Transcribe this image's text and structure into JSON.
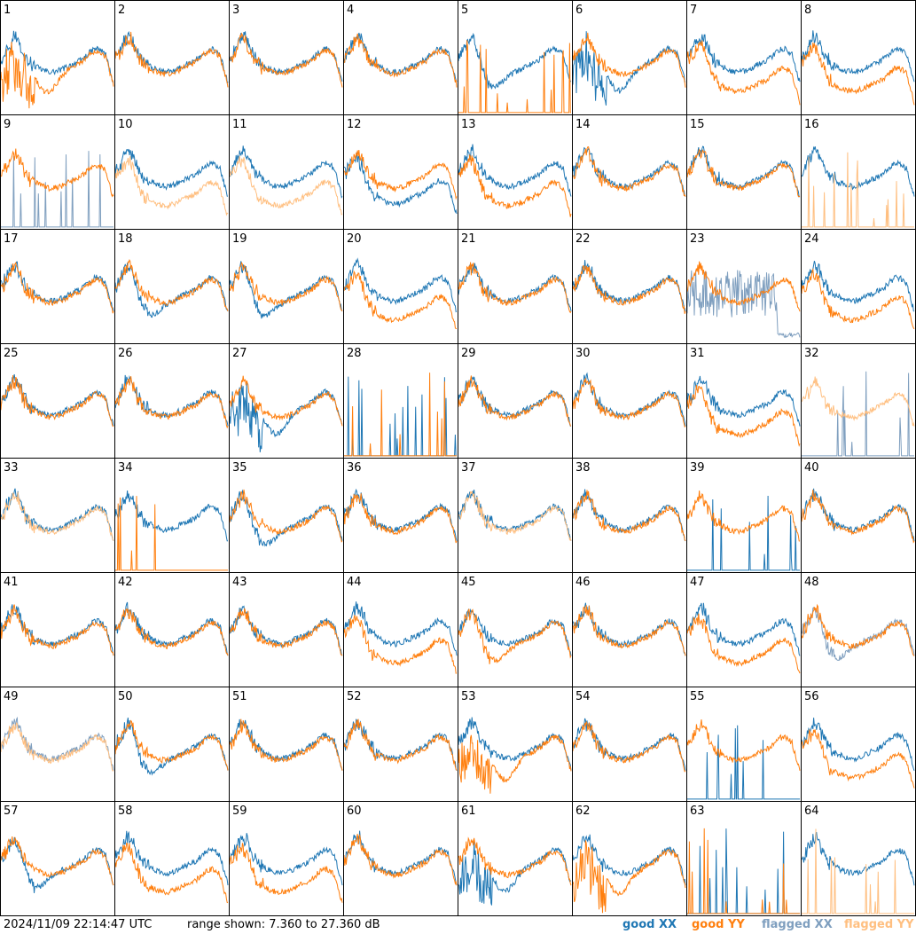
{
  "footer": {
    "timestamp": "2024/11/09 22:14:47 UTC",
    "range": "range shown: 7.360 to 27.360 dB",
    "legend": {
      "good_xx": "good XX",
      "good_yy": "good YY",
      "flagged_xx": "flagged XX",
      "flagged_yy": "flagged YY"
    }
  },
  "colors": {
    "good_xx": "#1f77b4",
    "good_yy": "#ff7f0e",
    "flagged_xx": "#7f9fbf",
    "flagged_yy": "#ffbf80"
  },
  "chart_data": {
    "type": "line",
    "grid": "8x8 small multiples",
    "ylim": [
      7.36,
      27.36
    ],
    "yunit": "dB",
    "panels": [
      {
        "label": "1",
        "xx": "good",
        "yy": "good",
        "xx_shape": "normal",
        "yy_shape": "drop"
      },
      {
        "label": "2",
        "xx": "good",
        "yy": "good",
        "xx_shape": "normal",
        "yy_shape": "normal"
      },
      {
        "label": "3",
        "xx": "good",
        "yy": "good",
        "xx_shape": "normal",
        "yy_shape": "normal"
      },
      {
        "label": "4",
        "xx": "good",
        "yy": "good",
        "xx_shape": "normal",
        "yy_shape": "normal"
      },
      {
        "label": "5",
        "xx": "good",
        "yy": "good",
        "xx_shape": "dip",
        "yy_shape": "dead"
      },
      {
        "label": "6",
        "xx": "good",
        "yy": "good",
        "xx_shape": "drop",
        "yy_shape": "normal"
      },
      {
        "label": "7",
        "xx": "good",
        "yy": "good",
        "xx_shape": "normal",
        "yy_shape": "low"
      },
      {
        "label": "8",
        "xx": "good",
        "yy": "good",
        "xx_shape": "normal",
        "yy_shape": "low"
      },
      {
        "label": "9",
        "xx": "flagged",
        "yy": "good",
        "xx_shape": "dead",
        "yy_shape": "normal"
      },
      {
        "label": "10",
        "xx": "good",
        "yy": "flagged",
        "xx_shape": "normal",
        "yy_shape": "low"
      },
      {
        "label": "11",
        "xx": "good",
        "yy": "flagged",
        "xx_shape": "normal",
        "yy_shape": "low"
      },
      {
        "label": "12",
        "xx": "good",
        "yy": "good",
        "xx_shape": "low",
        "yy_shape": "normal"
      },
      {
        "label": "13",
        "xx": "good",
        "yy": "good",
        "xx_shape": "normal",
        "yy_shape": "low"
      },
      {
        "label": "14",
        "xx": "good",
        "yy": "good",
        "xx_shape": "normal",
        "yy_shape": "normal"
      },
      {
        "label": "15",
        "xx": "good",
        "yy": "good",
        "xx_shape": "normal",
        "yy_shape": "normal"
      },
      {
        "label": "16",
        "xx": "good",
        "yy": "flagged",
        "xx_shape": "normal",
        "yy_shape": "dead"
      },
      {
        "label": "17",
        "xx": "good",
        "yy": "good",
        "xx_shape": "normal",
        "yy_shape": "normal"
      },
      {
        "label": "18",
        "xx": "good",
        "yy": "good",
        "xx_shape": "dip",
        "yy_shape": "normal"
      },
      {
        "label": "19",
        "xx": "good",
        "yy": "good",
        "xx_shape": "dip",
        "yy_shape": "normal"
      },
      {
        "label": "20",
        "xx": "good",
        "yy": "good",
        "xx_shape": "normal",
        "yy_shape": "low"
      },
      {
        "label": "21",
        "xx": "good",
        "yy": "good",
        "xx_shape": "normal",
        "yy_shape": "normal"
      },
      {
        "label": "22",
        "xx": "good",
        "yy": "good",
        "xx_shape": "normal",
        "yy_shape": "normal"
      },
      {
        "label": "23",
        "xx": "flagged",
        "yy": "good",
        "xx_shape": "noisy",
        "yy_shape": "normal"
      },
      {
        "label": "24",
        "xx": "good",
        "yy": "good",
        "xx_shape": "normal",
        "yy_shape": "low"
      },
      {
        "label": "25",
        "xx": "good",
        "yy": "good",
        "xx_shape": "normal",
        "yy_shape": "normal"
      },
      {
        "label": "26",
        "xx": "good",
        "yy": "good",
        "xx_shape": "normal",
        "yy_shape": "normal"
      },
      {
        "label": "27",
        "xx": "good",
        "yy": "good",
        "xx_shape": "drop",
        "yy_shape": "normal"
      },
      {
        "label": "28",
        "xx": "good",
        "yy": "good",
        "xx_shape": "dead",
        "yy_shape": "dead"
      },
      {
        "label": "29",
        "xx": "good",
        "yy": "good",
        "xx_shape": "normal",
        "yy_shape": "normal"
      },
      {
        "label": "30",
        "xx": "good",
        "yy": "good",
        "xx_shape": "normal",
        "yy_shape": "normal"
      },
      {
        "label": "31",
        "xx": "good",
        "yy": "good",
        "xx_shape": "normal",
        "yy_shape": "low"
      },
      {
        "label": "32",
        "xx": "flagged",
        "yy": "flagged",
        "xx_shape": "dead",
        "yy_shape": "normal"
      },
      {
        "label": "33",
        "xx": "good",
        "yy": "flagged",
        "xx_shape": "normal",
        "yy_shape": "normal"
      },
      {
        "label": "34",
        "xx": "good",
        "yy": "good",
        "xx_shape": "normal",
        "yy_shape": "dead"
      },
      {
        "label": "35",
        "xx": "good",
        "yy": "good",
        "xx_shape": "dip",
        "yy_shape": "normal"
      },
      {
        "label": "36",
        "xx": "good",
        "yy": "good",
        "xx_shape": "normal",
        "yy_shape": "normal"
      },
      {
        "label": "37",
        "xx": "good",
        "yy": "flagged",
        "xx_shape": "normal",
        "yy_shape": "normal"
      },
      {
        "label": "38",
        "xx": "good",
        "yy": "good",
        "xx_shape": "normal",
        "yy_shape": "normal"
      },
      {
        "label": "39",
        "xx": "good",
        "yy": "good",
        "xx_shape": "dead",
        "yy_shape": "normal"
      },
      {
        "label": "40",
        "xx": "good",
        "yy": "good",
        "xx_shape": "normal",
        "yy_shape": "normal"
      },
      {
        "label": "41",
        "xx": "good",
        "yy": "good",
        "xx_shape": "normal",
        "yy_shape": "normal"
      },
      {
        "label": "42",
        "xx": "good",
        "yy": "good",
        "xx_shape": "normal",
        "yy_shape": "normal"
      },
      {
        "label": "43",
        "xx": "good",
        "yy": "good",
        "xx_shape": "normal",
        "yy_shape": "normal"
      },
      {
        "label": "44",
        "xx": "good",
        "yy": "good",
        "xx_shape": "normal",
        "yy_shape": "low"
      },
      {
        "label": "45",
        "xx": "good",
        "yy": "good",
        "xx_shape": "normal",
        "yy_shape": "dip"
      },
      {
        "label": "46",
        "xx": "good",
        "yy": "good",
        "xx_shape": "normal",
        "yy_shape": "normal"
      },
      {
        "label": "47",
        "xx": "good",
        "yy": "good",
        "xx_shape": "normal",
        "yy_shape": "low"
      },
      {
        "label": "48",
        "xx": "flagged",
        "yy": "good",
        "xx_shape": "dip",
        "yy_shape": "normal"
      },
      {
        "label": "49",
        "xx": "flagged",
        "yy": "flagged",
        "xx_shape": "normal",
        "yy_shape": "normal"
      },
      {
        "label": "50",
        "xx": "good",
        "yy": "good",
        "xx_shape": "dip",
        "yy_shape": "normal"
      },
      {
        "label": "51",
        "xx": "good",
        "yy": "good",
        "xx_shape": "normal",
        "yy_shape": "normal"
      },
      {
        "label": "52",
        "xx": "good",
        "yy": "good",
        "xx_shape": "normal",
        "yy_shape": "normal"
      },
      {
        "label": "53",
        "xx": "good",
        "yy": "good",
        "xx_shape": "normal",
        "yy_shape": "drop"
      },
      {
        "label": "54",
        "xx": "good",
        "yy": "good",
        "xx_shape": "normal",
        "yy_shape": "normal"
      },
      {
        "label": "55",
        "xx": "good",
        "yy": "good",
        "xx_shape": "dead",
        "yy_shape": "normal"
      },
      {
        "label": "56",
        "xx": "good",
        "yy": "good",
        "xx_shape": "normal",
        "yy_shape": "low"
      },
      {
        "label": "57",
        "xx": "good",
        "yy": "good",
        "xx_shape": "dip",
        "yy_shape": "normal"
      },
      {
        "label": "58",
        "xx": "good",
        "yy": "good",
        "xx_shape": "normal",
        "yy_shape": "low"
      },
      {
        "label": "59",
        "xx": "good",
        "yy": "good",
        "xx_shape": "normal",
        "yy_shape": "low"
      },
      {
        "label": "60",
        "xx": "good",
        "yy": "good",
        "xx_shape": "normal",
        "yy_shape": "normal"
      },
      {
        "label": "61",
        "xx": "good",
        "yy": "good",
        "xx_shape": "drop",
        "yy_shape": "normal"
      },
      {
        "label": "62",
        "xx": "good",
        "yy": "good",
        "xx_shape": "normal",
        "yy_shape": "drop"
      },
      {
        "label": "63",
        "xx": "good",
        "yy": "good",
        "xx_shape": "dead",
        "yy_shape": "dead"
      },
      {
        "label": "64",
        "xx": "good",
        "yy": "flagged",
        "xx_shape": "normal",
        "yy_shape": "dead"
      }
    ]
  }
}
